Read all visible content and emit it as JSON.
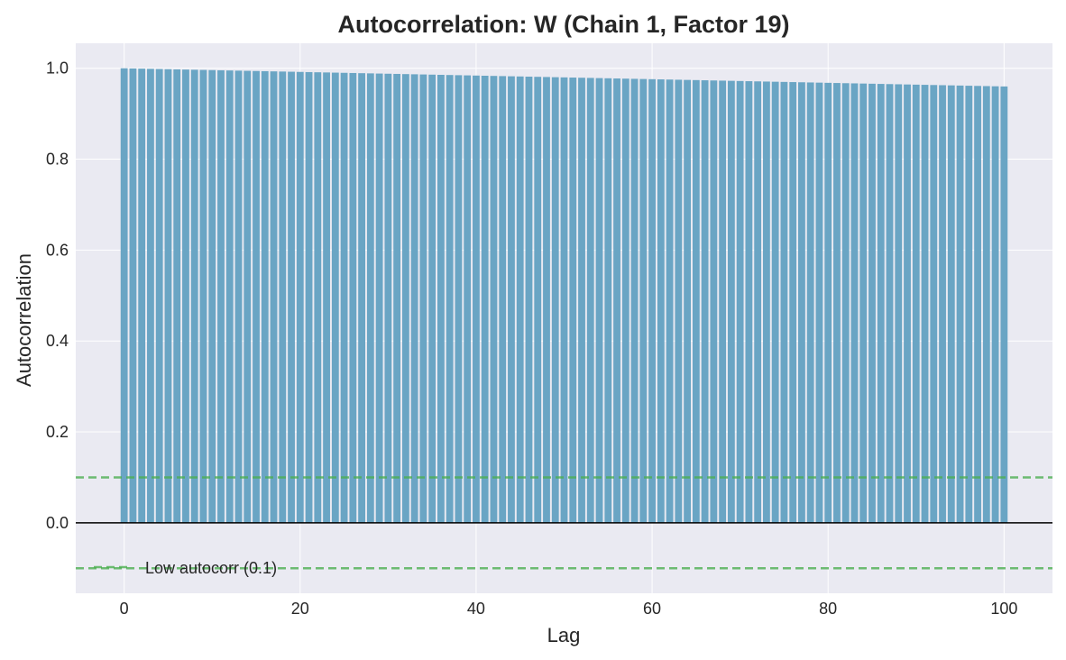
{
  "chart_data": {
    "type": "bar",
    "title": "Autocorrelation: W (Chain 1, Factor 19)",
    "xlabel": "Lag",
    "ylabel": "Autocorrelation",
    "xlim": [
      -5.5,
      105.5
    ],
    "ylim": [
      -0.155,
      1.055
    ],
    "xticks": [
      0,
      20,
      40,
      60,
      80,
      100
    ],
    "xtick_labels": [
      "0",
      "20",
      "40",
      "60",
      "80",
      "100"
    ],
    "yticks": [
      0.0,
      0.2,
      0.4,
      0.6,
      0.8,
      1.0
    ],
    "ytick_labels": [
      "0.0",
      "0.2",
      "0.4",
      "0.6",
      "0.8",
      "1.0"
    ],
    "grid": true,
    "lags": [
      0,
      1,
      2,
      3,
      4,
      5,
      6,
      7,
      8,
      9,
      10,
      11,
      12,
      13,
      14,
      15,
      16,
      17,
      18,
      19,
      20,
      21,
      22,
      23,
      24,
      25,
      26,
      27,
      28,
      29,
      30,
      31,
      32,
      33,
      34,
      35,
      36,
      37,
      38,
      39,
      40,
      41,
      42,
      43,
      44,
      45,
      46,
      47,
      48,
      49,
      50,
      51,
      52,
      53,
      54,
      55,
      56,
      57,
      58,
      59,
      60,
      61,
      62,
      63,
      64,
      65,
      66,
      67,
      68,
      69,
      70,
      71,
      72,
      73,
      74,
      75,
      76,
      77,
      78,
      79,
      80,
      81,
      82,
      83,
      84,
      85,
      86,
      87,
      88,
      89,
      90,
      91,
      92,
      93,
      94,
      95,
      96,
      97,
      98,
      99,
      100
    ],
    "values": [
      1.0,
      0.9996,
      0.9992,
      0.9988,
      0.9984,
      0.998,
      0.9976,
      0.9972,
      0.9968,
      0.9964,
      0.996,
      0.9956,
      0.9952,
      0.9948,
      0.9944,
      0.994,
      0.9936,
      0.9932,
      0.9928,
      0.9924,
      0.992,
      0.9916,
      0.9912,
      0.9908,
      0.9904,
      0.99,
      0.9896,
      0.9892,
      0.9888,
      0.9884,
      0.988,
      0.9876,
      0.9872,
      0.9868,
      0.9864,
      0.986,
      0.9856,
      0.9852,
      0.9848,
      0.9844,
      0.984,
      0.9836,
      0.9832,
      0.9828,
      0.9824,
      0.982,
      0.9816,
      0.9812,
      0.9808,
      0.9804,
      0.98,
      0.9796,
      0.9792,
      0.9788,
      0.9784,
      0.978,
      0.9776,
      0.9772,
      0.9768,
      0.9764,
      0.976,
      0.9756,
      0.9752,
      0.9748,
      0.9744,
      0.974,
      0.9736,
      0.9732,
      0.9728,
      0.9724,
      0.972,
      0.9716,
      0.9712,
      0.9708,
      0.9704,
      0.97,
      0.9696,
      0.9692,
      0.9688,
      0.9684,
      0.968,
      0.9676,
      0.9672,
      0.9668,
      0.9664,
      0.966,
      0.9656,
      0.9652,
      0.9648,
      0.9644,
      0.964,
      0.9636,
      0.9632,
      0.9628,
      0.9624,
      0.962,
      0.9616,
      0.9612,
      0.9608,
      0.9604,
      0.96
    ],
    "reference_lines": [
      {
        "y": 0.1,
        "style": "dashed",
        "color": "#4CAF50"
      },
      {
        "y": -0.1,
        "style": "dashed",
        "color": "#4CAF50"
      },
      {
        "y": 0.0,
        "style": "solid",
        "color": "#000000"
      }
    ],
    "legend": {
      "label": "Low autocorr (0.1)",
      "placement": "lower-left"
    },
    "colors": {
      "bar": "#6aa5c4",
      "plot_background": "#eaeaf2",
      "grid": "#ffffff",
      "threshold": "#4CAF50",
      "zero_line": "#000000"
    }
  }
}
